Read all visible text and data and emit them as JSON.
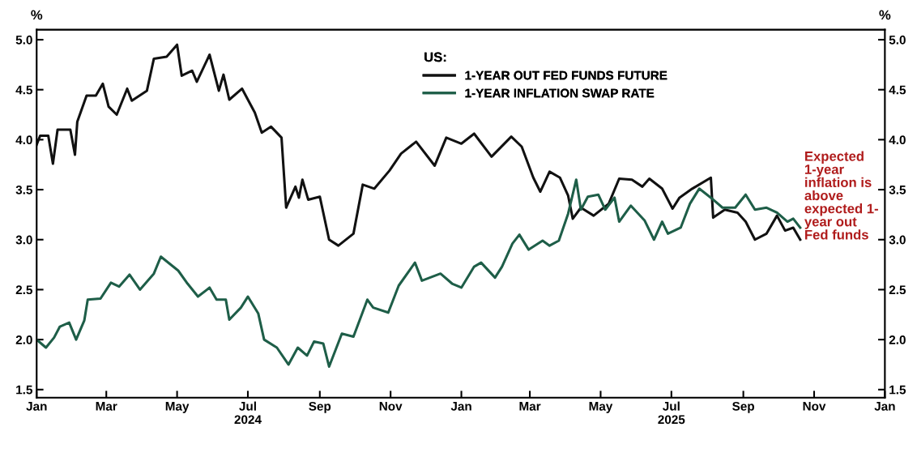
{
  "chart_data": {
    "type": "line",
    "ylabel": "%",
    "y2label": "%",
    "legend_title": "US:",
    "legend": "top",
    "xlim": [
      "2024-01-01",
      "2026-01-01"
    ],
    "xticks": [
      {
        "value": "2024-01-01",
        "label": "Jan"
      },
      {
        "value": "2024-03-01",
        "label": "Mar"
      },
      {
        "value": "2024-05-01",
        "label": "May"
      },
      {
        "value": "2024-07-01",
        "label": "Jul\n2024"
      },
      {
        "value": "2024-09-01",
        "label": "Sep"
      },
      {
        "value": "2024-11-01",
        "label": "Nov"
      },
      {
        "value": "2025-01-01",
        "label": "Jan"
      },
      {
        "value": "2025-03-01",
        "label": "Mar"
      },
      {
        "value": "2025-05-01",
        "label": "May"
      },
      {
        "value": "2025-07-01",
        "label": "Jul\n2025"
      },
      {
        "value": "2025-09-01",
        "label": "Sep"
      },
      {
        "value": "2025-11-01",
        "label": "Nov"
      },
      {
        "value": "2026-01-01",
        "label": "Jan"
      }
    ],
    "ylim": [
      1.42,
      5.1
    ],
    "yticks": [
      {
        "value": 1.5,
        "label": "1.5"
      },
      {
        "value": 2.0,
        "label": "2.0"
      },
      {
        "value": 2.5,
        "label": "2.5"
      },
      {
        "value": 3.0,
        "label": "3.0"
      },
      {
        "value": 3.5,
        "label": "3.5"
      },
      {
        "value": 4.0,
        "label": "4.0"
      },
      {
        "value": 4.5,
        "label": "4.5"
      },
      {
        "value": 5.0,
        "label": "5.0"
      }
    ],
    "y2lim": [
      1.42,
      5.1
    ],
    "y2ticks": [
      {
        "value": 1.5,
        "label": "1.5"
      },
      {
        "value": 2.0,
        "label": "2.0"
      },
      {
        "value": 2.5,
        "label": "2.5"
      },
      {
        "value": 3.0,
        "label": "3.0"
      },
      {
        "value": 3.5,
        "label": "3.5"
      },
      {
        "value": 4.0,
        "label": "4.0"
      },
      {
        "value": 4.5,
        "label": "4.5"
      },
      {
        "value": 5.0,
        "label": "5.0"
      }
    ],
    "grid": false,
    "marker": "none",
    "line_style": "solid",
    "annotations": [
      "Expected\n1-year\ninflation is\nabove\nexpected 1-\nyear out\nFed funds"
    ],
    "series": [
      {
        "name": "1-YEAR OUT FED FUNDS FUTURE",
        "color": "#111111",
        "x": [
          "2024-01-01",
          "2024-01-04",
          "2024-01-11",
          "2024-01-15",
          "2024-01-19",
          "2024-01-30",
          "2024-02-03",
          "2024-02-05",
          "2024-02-13",
          "2024-02-21",
          "2024-02-27",
          "2024-03-03",
          "2024-03-10",
          "2024-03-19",
          "2024-03-23",
          "2024-04-05",
          "2024-04-11",
          "2024-04-22",
          "2024-05-01",
          "2024-05-05",
          "2024-05-14",
          "2024-05-18",
          "2024-05-29",
          "2024-06-06",
          "2024-06-10",
          "2024-06-15",
          "2024-06-26",
          "2024-07-07",
          "2024-07-13",
          "2024-07-21",
          "2024-07-30",
          "2024-08-03",
          "2024-08-11",
          "2024-08-14",
          "2024-08-17",
          "2024-08-22",
          "2024-09-01",
          "2024-09-09",
          "2024-09-17",
          "2024-09-30",
          "2024-10-08",
          "2024-10-18",
          "2024-10-31",
          "2024-11-10",
          "2024-11-23",
          "2024-12-09",
          "2024-12-19",
          "2025-01-01",
          "2025-01-12",
          "2025-01-27",
          "2025-02-13",
          "2025-02-22",
          "2025-03-04",
          "2025-03-10",
          "2025-03-18",
          "2025-03-27",
          "2025-04-03",
          "2025-04-07",
          "2025-04-14",
          "2025-04-25",
          "2025-05-08",
          "2025-05-17",
          "2025-05-28",
          "2025-06-06",
          "2025-06-12",
          "2025-06-23",
          "2025-07-02",
          "2025-07-08",
          "2025-07-19",
          "2025-08-04",
          "2025-08-06",
          "2025-08-16",
          "2025-08-27",
          "2025-09-03",
          "2025-09-11",
          "2025-09-21",
          "2025-09-30",
          "2025-10-07",
          "2025-10-14",
          "2025-10-20"
        ],
        "values": [
          3.95,
          4.04,
          4.04,
          3.76,
          4.1,
          4.1,
          3.85,
          4.18,
          4.44,
          4.44,
          4.56,
          4.33,
          4.25,
          4.51,
          4.39,
          4.49,
          4.81,
          4.83,
          4.95,
          4.64,
          4.69,
          4.58,
          4.85,
          4.49,
          4.65,
          4.4,
          4.51,
          4.27,
          4.07,
          4.13,
          4.02,
          3.32,
          3.53,
          3.42,
          3.6,
          3.4,
          3.43,
          3.0,
          2.94,
          3.06,
          3.55,
          3.51,
          3.69,
          3.86,
          3.98,
          3.74,
          4.02,
          3.96,
          4.06,
          3.83,
          4.03,
          3.93,
          3.62,
          3.48,
          3.68,
          3.62,
          3.44,
          3.21,
          3.32,
          3.24,
          3.36,
          3.61,
          3.6,
          3.53,
          3.61,
          3.51,
          3.31,
          3.42,
          3.51,
          3.62,
          3.22,
          3.3,
          3.27,
          3.18,
          3.0,
          3.06,
          3.24,
          3.09,
          3.12,
          3.0
        ]
      },
      {
        "name": "1-YEAR INFLATION SWAP RATE",
        "color": "#1e5e48",
        "x": [
          "2024-01-01",
          "2024-01-09",
          "2024-01-16",
          "2024-01-21",
          "2024-01-29",
          "2024-02-04",
          "2024-02-11",
          "2024-02-14",
          "2024-02-25",
          "2024-03-05",
          "2024-03-12",
          "2024-03-21",
          "2024-03-30",
          "2024-04-11",
          "2024-04-17",
          "2024-05-02",
          "2024-05-10",
          "2024-05-19",
          "2024-05-29",
          "2024-06-04",
          "2024-06-12",
          "2024-06-15",
          "2024-06-25",
          "2024-07-01",
          "2024-07-10",
          "2024-07-15",
          "2024-07-26",
          "2024-08-05",
          "2024-08-13",
          "2024-08-21",
          "2024-08-27",
          "2024-09-04",
          "2024-09-09",
          "2024-09-20",
          "2024-09-30",
          "2024-10-12",
          "2024-10-17",
          "2024-10-30",
          "2024-11-08",
          "2024-11-22",
          "2024-11-28",
          "2024-12-14",
          "2024-12-24",
          "2025-01-01",
          "2025-01-12",
          "2025-01-18",
          "2025-01-30",
          "2025-02-05",
          "2025-02-14",
          "2025-02-20",
          "2025-02-28",
          "2025-03-12",
          "2025-03-18",
          "2025-03-26",
          "2025-04-03",
          "2025-04-10",
          "2025-04-14",
          "2025-04-20",
          "2025-04-29",
          "2025-05-05",
          "2025-05-13",
          "2025-05-17",
          "2025-05-27",
          "2025-06-08",
          "2025-06-16",
          "2025-06-23",
          "2025-06-28",
          "2025-07-09",
          "2025-07-17",
          "2025-07-25",
          "2025-08-04",
          "2025-08-14",
          "2025-08-25",
          "2025-09-03",
          "2025-09-11",
          "2025-09-21",
          "2025-09-30",
          "2025-10-09",
          "2025-10-14",
          "2025-10-20"
        ],
        "values": [
          2.0,
          1.92,
          2.02,
          2.13,
          2.17,
          2.0,
          2.19,
          2.4,
          2.41,
          2.57,
          2.53,
          2.65,
          2.5,
          2.66,
          2.83,
          2.69,
          2.56,
          2.43,
          2.52,
          2.4,
          2.4,
          2.2,
          2.32,
          2.43,
          2.26,
          2.0,
          1.92,
          1.75,
          1.92,
          1.84,
          1.98,
          1.96,
          1.73,
          2.06,
          2.03,
          2.4,
          2.32,
          2.27,
          2.54,
          2.77,
          2.59,
          2.66,
          2.56,
          2.52,
          2.73,
          2.77,
          2.62,
          2.73,
          2.96,
          3.05,
          2.9,
          2.99,
          2.94,
          2.99,
          3.26,
          3.6,
          3.3,
          3.43,
          3.45,
          3.3,
          3.42,
          3.18,
          3.34,
          3.19,
          3.0,
          3.18,
          3.06,
          3.12,
          3.36,
          3.51,
          3.42,
          3.32,
          3.32,
          3.45,
          3.3,
          3.32,
          3.27,
          3.18,
          3.21,
          3.12
        ]
      }
    ]
  }
}
